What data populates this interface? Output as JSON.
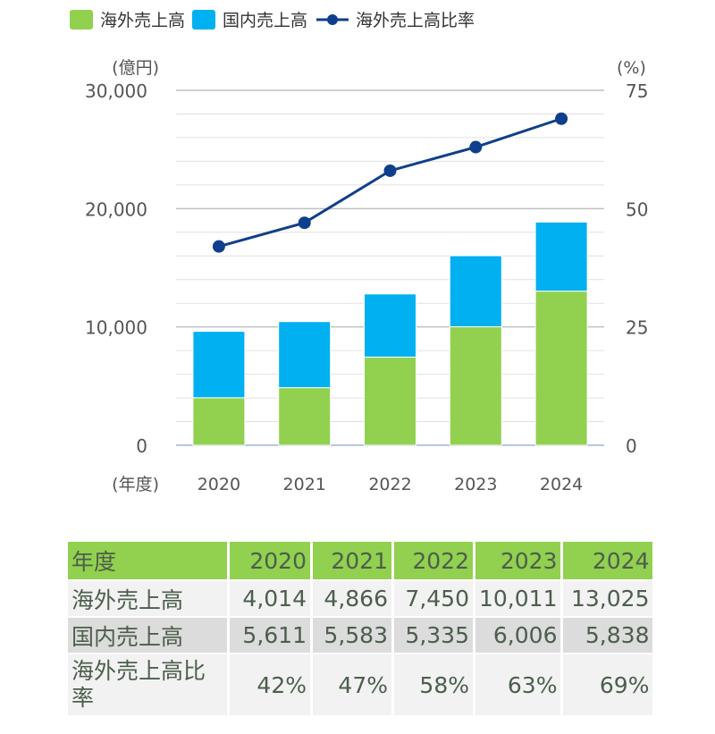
{
  "legend": [
    {
      "label": "海外売上高",
      "color": "#92d050"
    },
    {
      "label": "国内売上高",
      "color": "#00b0f0"
    },
    {
      "label": "海外売上高比率",
      "color": "#0f3f8c"
    }
  ],
  "chart_data": {
    "type": "bar",
    "stacked": true,
    "categories": [
      "2020",
      "2021",
      "2022",
      "2023",
      "2024"
    ],
    "xlabel": "(年度)",
    "ylabel": "(億円)",
    "y2label": "(%)",
    "ylim": [
      0,
      30000
    ],
    "y2lim": [
      0,
      75
    ],
    "yticks": [
      "0",
      "10,000",
      "20,000",
      "30,000"
    ],
    "y2ticks": [
      "0",
      "25",
      "50",
      "75"
    ],
    "grid": true,
    "legend_position": "top",
    "series": [
      {
        "name": "海外売上高",
        "type": "bar",
        "color": "#92d050",
        "values": [
          4014,
          4866,
          7450,
          10011,
          13025
        ]
      },
      {
        "name": "国内売上高",
        "type": "bar",
        "color": "#00b0f0",
        "values": [
          5611,
          5583,
          5335,
          6006,
          5838
        ]
      },
      {
        "name": "海外売上高比率",
        "type": "line",
        "axis": "right",
        "color": "#0f3f8c",
        "values": [
          42,
          47,
          58,
          63,
          69
        ]
      }
    ]
  },
  "table": {
    "header": [
      "年度",
      "2020",
      "2021",
      "2022",
      "2023",
      "2024"
    ],
    "rows": [
      [
        "海外売上高",
        "4,014",
        "4,866",
        "7,450",
        "10,011",
        "13,025"
      ],
      [
        "国内売上高",
        "5,611",
        "5,583",
        "5,335",
        "6,006",
        "5,838"
      ],
      [
        "海外売上高比率",
        "42%",
        "47%",
        "58%",
        "63%",
        "69%"
      ]
    ]
  }
}
